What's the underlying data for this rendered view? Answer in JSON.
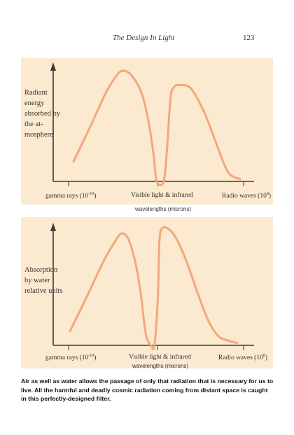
{
  "header": {
    "running_title": "The Design In Light",
    "page_number": "123"
  },
  "chart_data": [
    {
      "type": "line",
      "ylabel": "Radiant energy absorbed by the at-mosphere",
      "xlabel": "wavelengths (microns)",
      "x_tick_labels": [
        "gamma rays (10-10)",
        "Visible light & infrared",
        "Radio waves (10⁸)"
      ],
      "series": [
        {
          "x": [
            0.0,
            0.1,
            0.19,
            0.25,
            0.29,
            0.34,
            0.4,
            0.44,
            0.47,
            0.49,
            0.53,
            0.55,
            0.57,
            0.59,
            0.62,
            0.69,
            0.77,
            0.85,
            0.91,
            0.98
          ],
          "y": [
            0.18,
            0.5,
            0.8,
            0.95,
            1.0,
            0.96,
            0.8,
            0.55,
            0.25,
            0.0,
            0.0,
            0.3,
            0.75,
            0.85,
            0.87,
            0.84,
            0.62,
            0.3,
            0.08,
            0.02
          ]
        }
      ]
    },
    {
      "type": "line",
      "ylabel": "Absorption by water relative units",
      "xlabel": "wavelengths (microns)",
      "x_tick_labels": [
        "gamma rays (10-10)",
        "Visible light & infrared",
        "Radio waves (10⁸)"
      ],
      "series": [
        {
          "x": [
            0.0,
            0.1,
            0.19,
            0.26,
            0.3,
            0.34,
            0.38,
            0.41,
            0.44,
            0.47,
            0.49,
            0.51,
            0.52,
            0.54,
            0.58,
            0.62,
            0.68,
            0.74,
            0.8,
            0.86,
            0.92,
            0.97
          ],
          "y": [
            0.12,
            0.42,
            0.7,
            0.88,
            0.95,
            0.9,
            0.7,
            0.45,
            0.1,
            0.0,
            0.0,
            0.4,
            0.9,
            1.0,
            0.98,
            0.9,
            0.7,
            0.45,
            0.22,
            0.08,
            0.04,
            0.02
          ]
        }
      ]
    }
  ],
  "panel1": {
    "side_label": "Radiant energy absorbed by the at-mosphere",
    "tick_gamma": "gamma rays (10",
    "tick_gamma_exp": "-10",
    "tick_gamma_close": ")",
    "tick_visible": "Visible light & infrared",
    "tick_radio": "Radio waves (10",
    "tick_radio_exp": "8",
    "tick_radio_close": ")",
    "axis_label": "wavelengths (microns)"
  },
  "panel2": {
    "side_label": "Absorption by water relative units",
    "tick_gamma": "gamma rays (10",
    "tick_gamma_exp": "-10",
    "tick_gamma_close": ")",
    "tick_visible": "Visible light & infrared",
    "tick_radio": "Radio waves (10",
    "tick_radio_exp": "8",
    "tick_radio_close": ")",
    "axis_label": "wavelengths (microns)"
  },
  "caption": "Air as well as water allows the passage of only that radiation that is necessary for us to live. All the harmful and deadly cosmic radiation coming from distant space is caught in this perfectly-designed filter.",
  "colors": {
    "panel_bg": "#fbe9d0",
    "curve": "#f4a77a",
    "axis": "#3a3a3a"
  }
}
